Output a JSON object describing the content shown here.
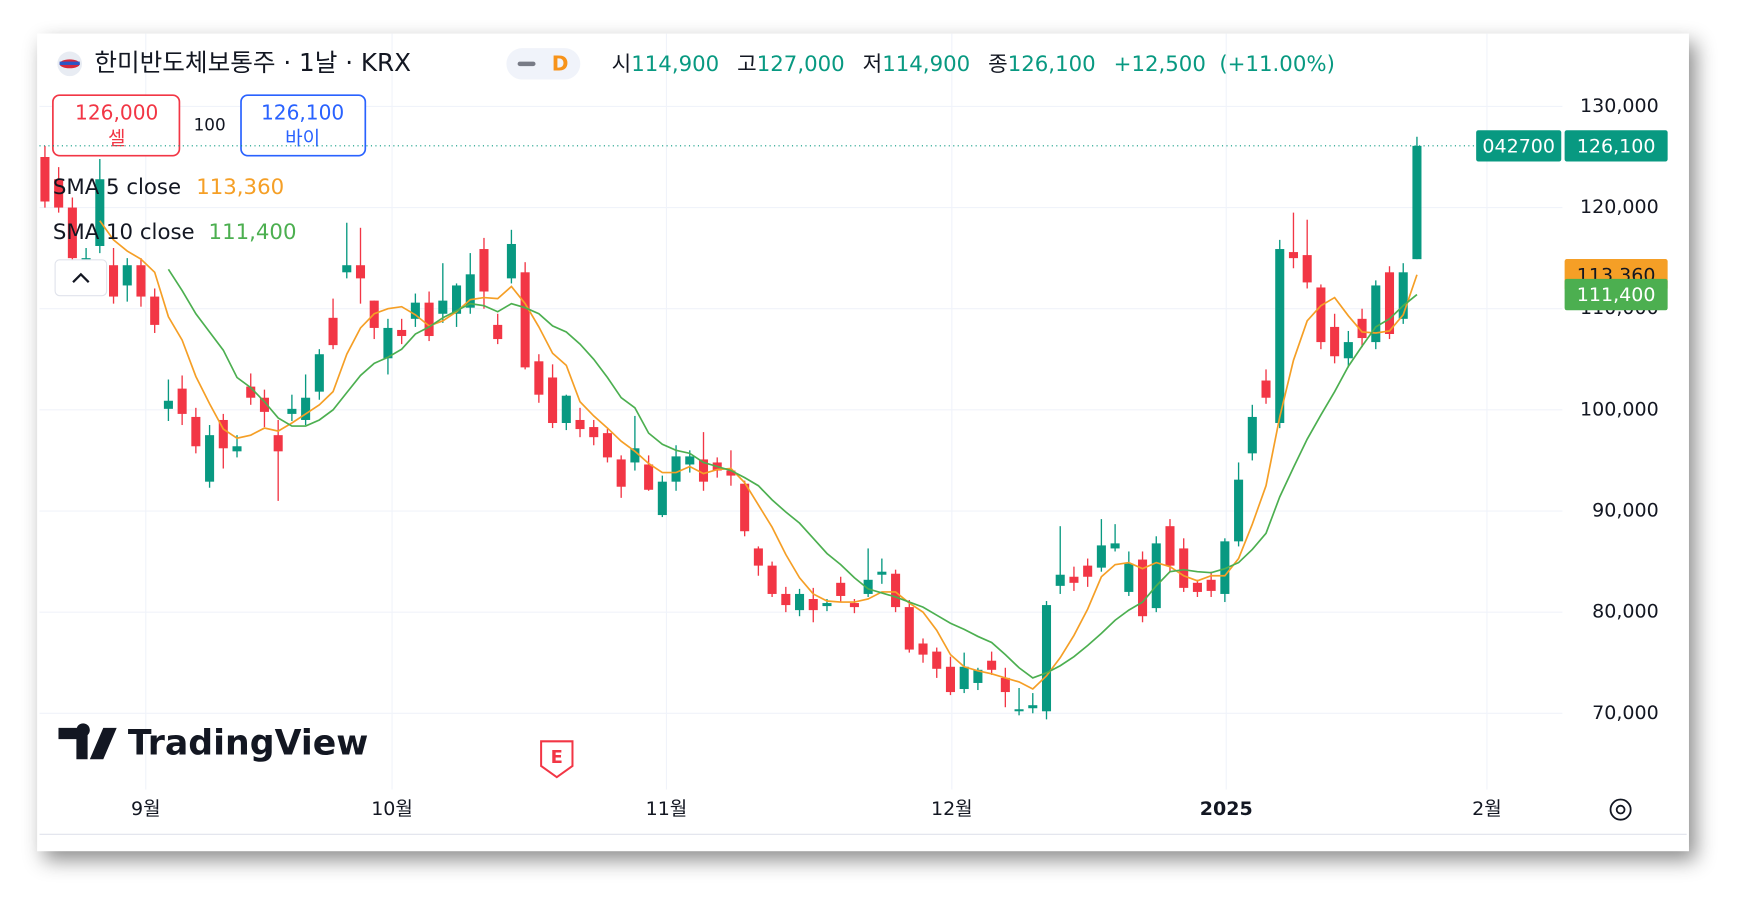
{
  "header": {
    "stats": [
      {
        "name": "시",
        "value": "114,900"
      },
      {
        "name": "고",
        "value": "127,000"
      },
      {
        "name": "저",
        "value": "114,900"
      },
      {
        "name": "종",
        "value": "126,100"
      }
    ],
    "change": "+12,500",
    "change_percent": "(+11.00%)",
    "interval_badge": "D"
  },
  "trade_panel": {
    "sell_price": "126,000",
    "sell_label": "셀",
    "quantity": "100",
    "buy_price": "126,100",
    "buy_label": "바이"
  },
  "watermark": "TradingView",
  "event_marker": "E",
  "chart_data": {
    "type": "candlestick",
    "title": "한미반도체보통주 · 1날 · KRX",
    "symbol_code": "042700",
    "last_price_label": "126,100",
    "up_color": "#089981",
    "down_color": "#f23645",
    "grid": true,
    "xlim": [
      -0.4,
      110.6
    ],
    "ylim": [
      62470,
      137200
    ],
    "xticks": [
      {
        "value": 7.35,
        "label": "9월"
      },
      {
        "value": 25.3,
        "label": "10월"
      },
      {
        "value": 45.3,
        "label": "11월"
      },
      {
        "value": 66.1,
        "label": "12월"
      },
      {
        "value": 86.1,
        "label": "2025"
      },
      {
        "value": 105.1,
        "label": "2월"
      }
    ],
    "yticks": [
      {
        "value": 70000,
        "label": "70,000"
      },
      {
        "value": 80000,
        "label": "80,000"
      },
      {
        "value": 90000,
        "label": "90,000"
      },
      {
        "value": 100000,
        "label": "100,000"
      },
      {
        "value": 110000,
        "label": "110,000"
      },
      {
        "value": 120000,
        "label": "120,000"
      },
      {
        "value": 130000,
        "label": "130,000"
      }
    ],
    "open": [
      125000,
      122800,
      120000,
      113400,
      116200,
      114300,
      112300,
      114300,
      111200,
      100100,
      102100,
      99300,
      92900,
      99000,
      95900,
      102300,
      101200,
      97500,
      99600,
      99000,
      101800,
      109100,
      113600,
      114300,
      110800,
      105100,
      107900,
      109000,
      110600,
      109500,
      109500,
      110100,
      115900,
      108400,
      113000,
      113600,
      104800,
      103200,
      98700,
      99000,
      98300,
      97700,
      95100,
      94800,
      94600,
      89600,
      92900,
      94600,
      95100,
      94800,
      94000,
      92700,
      86300,
      84600,
      81800,
      80200,
      81300,
      80600,
      82900,
      80900,
      81800,
      83700,
      83800,
      80500,
      76900,
      76100,
      74600,
      72400,
      73000,
      75200,
      73500,
      70200,
      70500,
      70200,
      82600,
      83500,
      84600,
      84400,
      86300,
      82000,
      85200,
      80400,
      88500,
      86300,
      82900,
      83200,
      81800,
      87000,
      95700,
      102900,
      98700,
      115600,
      115300,
      112100,
      108200,
      105100,
      109000,
      106700,
      113600,
      109000,
      114900
    ],
    "high": [
      126100,
      124000,
      121000,
      116000,
      124800,
      116000,
      115000,
      115000,
      112000,
      103000,
      103400,
      100200,
      98500,
      99600,
      97500,
      103600,
      102000,
      99000,
      101500,
      103500,
      106000,
      111000,
      118500,
      118000,
      110800,
      109000,
      109000,
      111500,
      111700,
      114500,
      112500,
      115500,
      117000,
      109500,
      117800,
      114600,
      105500,
      104500,
      101500,
      100200,
      99000,
      98100,
      95500,
      99400,
      95500,
      93500,
      96500,
      96000,
      97800,
      95300,
      96000,
      93000,
      86500,
      85000,
      82500,
      82300,
      82400,
      81300,
      83500,
      81300,
      86300,
      85300,
      84200,
      81200,
      77400,
      76500,
      75600,
      76000,
      74500,
      76100,
      74500,
      72500,
      72000,
      81100,
      88500,
      84500,
      85300,
      89200,
      88700,
      86000,
      86000,
      87500,
      89200,
      87300,
      83200,
      84000,
      87300,
      94800,
      100500,
      104000,
      116800,
      119500,
      118800,
      112400,
      109500,
      107800,
      110000,
      112800,
      114200,
      114500,
      127000
    ],
    "low": [
      120000,
      119500,
      114000,
      112500,
      115500,
      110500,
      110700,
      110200,
      107600,
      98900,
      98500,
      95700,
      92300,
      94200,
      95300,
      100500,
      98300,
      91000,
      98900,
      98500,
      101000,
      106000,
      113000,
      110500,
      107000,
      103500,
      106500,
      108200,
      106800,
      108600,
      108200,
      109500,
      110000,
      106500,
      112500,
      104000,
      100700,
      98200,
      98000,
      97300,
      96500,
      94800,
      91300,
      94000,
      92000,
      89400,
      92000,
      93800,
      92000,
      93300,
      92500,
      87500,
      83600,
      81500,
      80000,
      79600,
      79000,
      80100,
      81000,
      79900,
      81500,
      82800,
      80000,
      76000,
      75000,
      73500,
      71800,
      72000,
      72300,
      73800,
      70600,
      69800,
      70000,
      69400,
      81800,
      82100,
      82500,
      84000,
      86000,
      81600,
      79000,
      80000,
      84000,
      82000,
      81500,
      81500,
      81000,
      86500,
      95000,
      100600,
      98200,
      114000,
      112000,
      106000,
      104600,
      104200,
      106200,
      106000,
      107000,
      108500,
      114900
    ],
    "close": [
      120600,
      120000,
      115000,
      115000,
      122800,
      111200,
      114300,
      111200,
      108400,
      100900,
      99600,
      96400,
      97500,
      96200,
      96400,
      101200,
      99800,
      95900,
      100100,
      101200,
      105500,
      106400,
      114300,
      113000,
      108100,
      108100,
      107300,
      110600,
      107300,
      110800,
      112300,
      113400,
      111700,
      107000,
      116400,
      104200,
      101500,
      98700,
      101400,
      98100,
      97300,
      95300,
      92400,
      96200,
      92100,
      92900,
      95400,
      95400,
      92900,
      94000,
      93500,
      88000,
      84600,
      81800,
      80700,
      81800,
      80200,
      80900,
      81600,
      80500,
      83200,
      84000,
      80500,
      76300,
      75800,
      74400,
      72100,
      74600,
      74300,
      74300,
      72100,
      70400,
      70800,
      80700,
      83700,
      82900,
      83500,
      86600,
      86800,
      84800,
      79600,
      86800,
      84600,
      82400,
      82000,
      82100,
      87000,
      93100,
      99300,
      101200,
      115900,
      115000,
      112600,
      106700,
      105300,
      106700,
      107100,
      112300,
      107500,
      113600,
      126100
    ],
    "series": [
      {
        "name": "SMA 5 close",
        "color": "#f59f26",
        "value_label": "113,360",
        "values": [
          null,
          null,
          null,
          null,
          118700,
          116800,
          115700,
          114900,
          113600,
          109200,
          106900,
          103300,
          100600,
          98100,
          97200,
          97500,
          98200,
          97900,
          98700,
          99600,
          100500,
          101800,
          105500,
          108100,
          109500,
          110000,
          110200,
          109400,
          108300,
          108800,
          109700,
          110900,
          111100,
          111000,
          112200,
          110500,
          108200,
          105600,
          104400,
          100800,
          99400,
          98200,
          96900,
          95900,
          94700,
          93800,
          93800,
          94400,
          93700,
          94100,
          94200,
          92800,
          90600,
          88400,
          85700,
          83400,
          81800,
          81100,
          81000,
          81000,
          81300,
          82000,
          82000,
          80900,
          80000,
          78200,
          75800,
          74600,
          74200,
          73900,
          73500,
          73100,
          72400,
          73700,
          75500,
          77700,
          80300,
          83500,
          84700,
          84900,
          84300,
          84900,
          84500,
          83600,
          83100,
          83600,
          83600,
          85300,
          88700,
          92500,
          99300,
          104900,
          108800,
          110300,
          111100,
          109300,
          107700,
          107600,
          107800,
          109400,
          113360
        ]
      },
      {
        "name": "SMA 10 close",
        "color": "#4caf50",
        "value_label": "111,400",
        "values": [
          null,
          null,
          null,
          null,
          null,
          null,
          null,
          null,
          null,
          113900,
          111800,
          109500,
          107700,
          105900,
          103200,
          102200,
          100800,
          99200,
          98400,
          98400,
          99000,
          100000,
          101700,
          103400,
          104600,
          105200,
          106000,
          107500,
          108200,
          109100,
          109800,
          110500,
          110300,
          109700,
          110500,
          110100,
          109500,
          108300,
          107700,
          106500,
          105000,
          103200,
          101200,
          100200,
          97700,
          96600,
          96000,
          95700,
          94800,
          94400,
          94000,
          93300,
          92500,
          91100,
          89900,
          88800,
          87300,
          85800,
          84700,
          83400,
          82300,
          81900,
          81500,
          81000,
          80500,
          79700,
          78900,
          78300,
          77600,
          77000,
          75800,
          74500,
          73500,
          74000,
          74700,
          75600,
          76700,
          77900,
          79200,
          80200,
          81000,
          82600,
          84000,
          84200,
          84000,
          83900,
          84300,
          84900,
          86200,
          87800,
          91400,
          94300,
          97100,
          99500,
          101800,
          104300,
          106300,
          108200,
          109000,
          110300,
          111400
        ]
      }
    ]
  }
}
